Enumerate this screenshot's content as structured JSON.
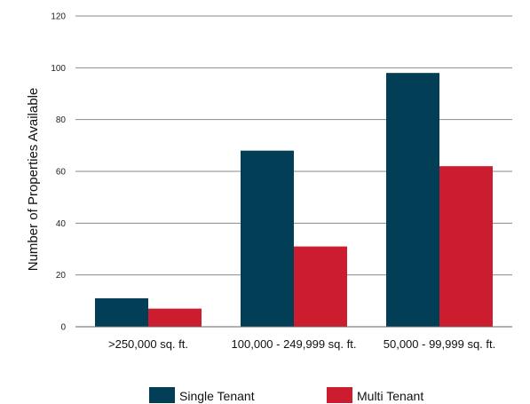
{
  "chart_data": {
    "type": "bar",
    "title": "",
    "xlabel": "",
    "ylabel": "Number of Properties Available",
    "categories": [
      ">250,000 sq. ft.",
      "100,000 - 249,999 sq. ft.",
      "50,000 - 99,999 sq. ft."
    ],
    "series": [
      {
        "name": "Single Tenant",
        "color": "#023e55",
        "values": [
          11,
          68,
          98
        ]
      },
      {
        "name": "Multi Tenant",
        "color": "#cc1c2f",
        "values": [
          7,
          31,
          62
        ]
      }
    ],
    "ylim": [
      0,
      120
    ],
    "yticks": [
      "0",
      "20",
      "40",
      "60",
      "80",
      "100",
      "120"
    ],
    "grid": true,
    "legend": "bottom"
  }
}
